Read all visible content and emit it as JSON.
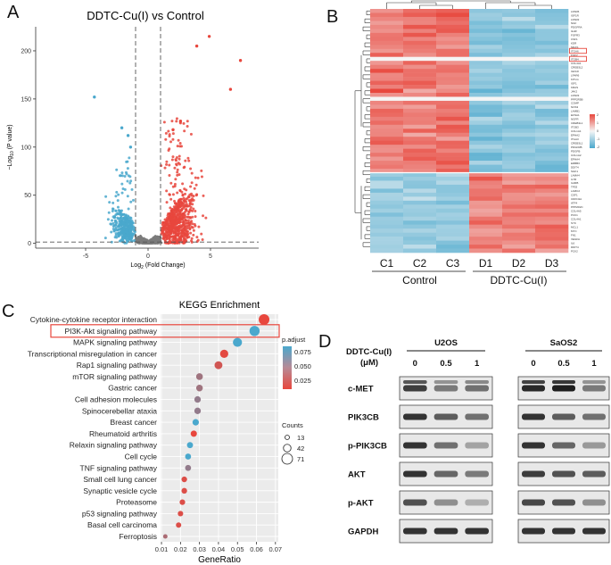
{
  "panels": {
    "a": "A",
    "b": "B",
    "c": "C",
    "d": "D"
  },
  "colors": {
    "up": "#e8473d",
    "down": "#4aa8cd",
    "ns": "#7b7b7b",
    "heat_high": "#e8473d",
    "heat_low": "#4aa8cd",
    "highlight": "#e8473d",
    "blue_dot": "#4aa8cd"
  },
  "volcano": {
    "title": "DDTC-Cu(I) vs Control",
    "ylabel_main": "−Log",
    "ylabel_sub": "10",
    "ylabel_rest": " (P value)",
    "xlabel_main": "Log",
    "xlabel_sub": "2",
    "xlabel_rest": " (Fold Change)",
    "x_ticks": [
      "-5",
      "0",
      "5"
    ],
    "y_ticks": [
      "0",
      "50",
      "100",
      "150",
      "200"
    ]
  },
  "heatmap": {
    "columns": [
      "C1",
      "C2",
      "C3",
      "D1",
      "D2",
      "D3"
    ],
    "groups": [
      "Control",
      "DDTC-Cu(I)"
    ],
    "genes": [
      "LPAR6",
      "IGF1R",
      "LPAR2",
      "NGF",
      "PDGFRA",
      "GHR",
      "FGFR3",
      "CSF1",
      "KDR",
      "NRAS",
      "ITGA6",
      "FGF2",
      "ITGB4",
      "COL4A1",
      "CREB3L2",
      "IGF1R",
      "LPAR6",
      "KITLG",
      "IGF1",
      "KRAS",
      "JAK2",
      "LPAR3",
      "PPP2R5B",
      "COMP",
      "NOS3",
      "LAMB1",
      "EFNA1",
      "NGFR",
      "CREB3L1",
      "ITGB3",
      "COL1A1",
      "EPHA2",
      "ITGA3",
      "CREB3L1",
      "PDGFRB",
      "PDGFB",
      "COL1A2",
      "EPHA4",
      "ERBB3",
      "DDIT4",
      "SGK1",
      "LAMA4",
      "IL7R",
      "IL2RB",
      "TP53",
      "LAMC2",
      "CSF1",
      "CDKN1A",
      "ATF4",
      "PPP2R2C",
      "COL4A5",
      "PCK1",
      "COL4A1",
      "SYK",
      "MCL1",
      "MYC",
      "FN1",
      "VEGFA",
      "IL6",
      "DDIT4",
      "PCK2"
    ],
    "legend_ticks": [
      "2",
      "1",
      "0",
      "-1",
      "-2"
    ]
  },
  "kegg": {
    "title": "KEGG Enrichment",
    "xlabel": "GeneRatio",
    "x_ticks": [
      "0.01",
      "0.02",
      "0.03",
      "0.04",
      "0.05",
      "0.06",
      "0.07"
    ],
    "padj_title": "p.adjust",
    "padj_ticks": [
      "0.075",
      "0.050",
      "0.025"
    ],
    "counts_title": "Counts",
    "counts_ticks": [
      "13",
      "42",
      "71"
    ],
    "highlight_index": 1
  },
  "chart_data": {
    "type": "scatter",
    "title": "KEGG Enrichment",
    "xlabel": "GeneRatio",
    "xlim": [
      0.01,
      0.07
    ],
    "pathways": [
      {
        "name": "Cytokine-cytokine receptor interaction",
        "gene_ratio": 0.064,
        "p_adjust": 0.01,
        "count": 71
      },
      {
        "name": "PI3K-Akt signaling pathway",
        "gene_ratio": 0.059,
        "p_adjust": 0.075,
        "count": 66
      },
      {
        "name": "MAPK signaling pathway",
        "gene_ratio": 0.05,
        "p_adjust": 0.075,
        "count": 56
      },
      {
        "name": "Transcriptional misregulation in cancer",
        "gene_ratio": 0.043,
        "p_adjust": 0.012,
        "count": 48
      },
      {
        "name": "Rap1 signaling pathway",
        "gene_ratio": 0.04,
        "p_adjust": 0.02,
        "count": 45
      },
      {
        "name": "mTOR signaling pathway",
        "gene_ratio": 0.03,
        "p_adjust": 0.04,
        "count": 34
      },
      {
        "name": "Gastric cancer",
        "gene_ratio": 0.03,
        "p_adjust": 0.04,
        "count": 33
      },
      {
        "name": "Cell adhesion molecules",
        "gene_ratio": 0.029,
        "p_adjust": 0.045,
        "count": 32
      },
      {
        "name": "Spinocerebellar ataxia",
        "gene_ratio": 0.029,
        "p_adjust": 0.045,
        "count": 32
      },
      {
        "name": "Breast cancer",
        "gene_ratio": 0.028,
        "p_adjust": 0.075,
        "count": 31
      },
      {
        "name": "Rheumatoid arthritis",
        "gene_ratio": 0.027,
        "p_adjust": 0.01,
        "count": 30
      },
      {
        "name": "Relaxin signaling pathway",
        "gene_ratio": 0.025,
        "p_adjust": 0.075,
        "count": 28
      },
      {
        "name": "Cell cycle",
        "gene_ratio": 0.024,
        "p_adjust": 0.075,
        "count": 27
      },
      {
        "name": "TNF signaling pathway",
        "gene_ratio": 0.024,
        "p_adjust": 0.045,
        "count": 27
      },
      {
        "name": "Small cell lung cancer",
        "gene_ratio": 0.022,
        "p_adjust": 0.015,
        "count": 24
      },
      {
        "name": "Synaptic vesicle cycle",
        "gene_ratio": 0.022,
        "p_adjust": 0.015,
        "count": 24
      },
      {
        "name": "Proteasome",
        "gene_ratio": 0.021,
        "p_adjust": 0.015,
        "count": 23
      },
      {
        "name": "p53 signaling pathway",
        "gene_ratio": 0.02,
        "p_adjust": 0.015,
        "count": 22
      },
      {
        "name": "Basal cell carcinoma",
        "gene_ratio": 0.019,
        "p_adjust": 0.015,
        "count": 21
      },
      {
        "name": "Ferroptosis",
        "gene_ratio": 0.012,
        "p_adjust": 0.035,
        "count": 13
      }
    ]
  },
  "western": {
    "header_line1": "DDTC-Cu(I)",
    "header_line2": "(μM)",
    "cell_lines": [
      "U2OS",
      "SaOS2"
    ],
    "doses": [
      "0",
      "0.5",
      "1"
    ],
    "proteins": [
      "c-MET",
      "PIK3CB",
      "p-PIK3CB",
      "AKT",
      "p-AKT",
      "GAPDH"
    ],
    "band_intensity": {
      "U2OS": [
        [
          0.85,
          0.55,
          0.6
        ],
        [
          0.9,
          0.7,
          0.6
        ],
        [
          0.9,
          0.6,
          0.35
        ],
        [
          0.9,
          0.65,
          0.55
        ],
        [
          0.75,
          0.45,
          0.3
        ],
        [
          0.9,
          0.9,
          0.9
        ]
      ],
      "SaOS2": [
        [
          0.95,
          1.0,
          0.55
        ],
        [
          0.9,
          0.7,
          0.6
        ],
        [
          0.9,
          0.65,
          0.4
        ],
        [
          0.85,
          0.75,
          0.7
        ],
        [
          0.8,
          0.75,
          0.45
        ],
        [
          0.9,
          0.9,
          0.9
        ]
      ]
    }
  }
}
